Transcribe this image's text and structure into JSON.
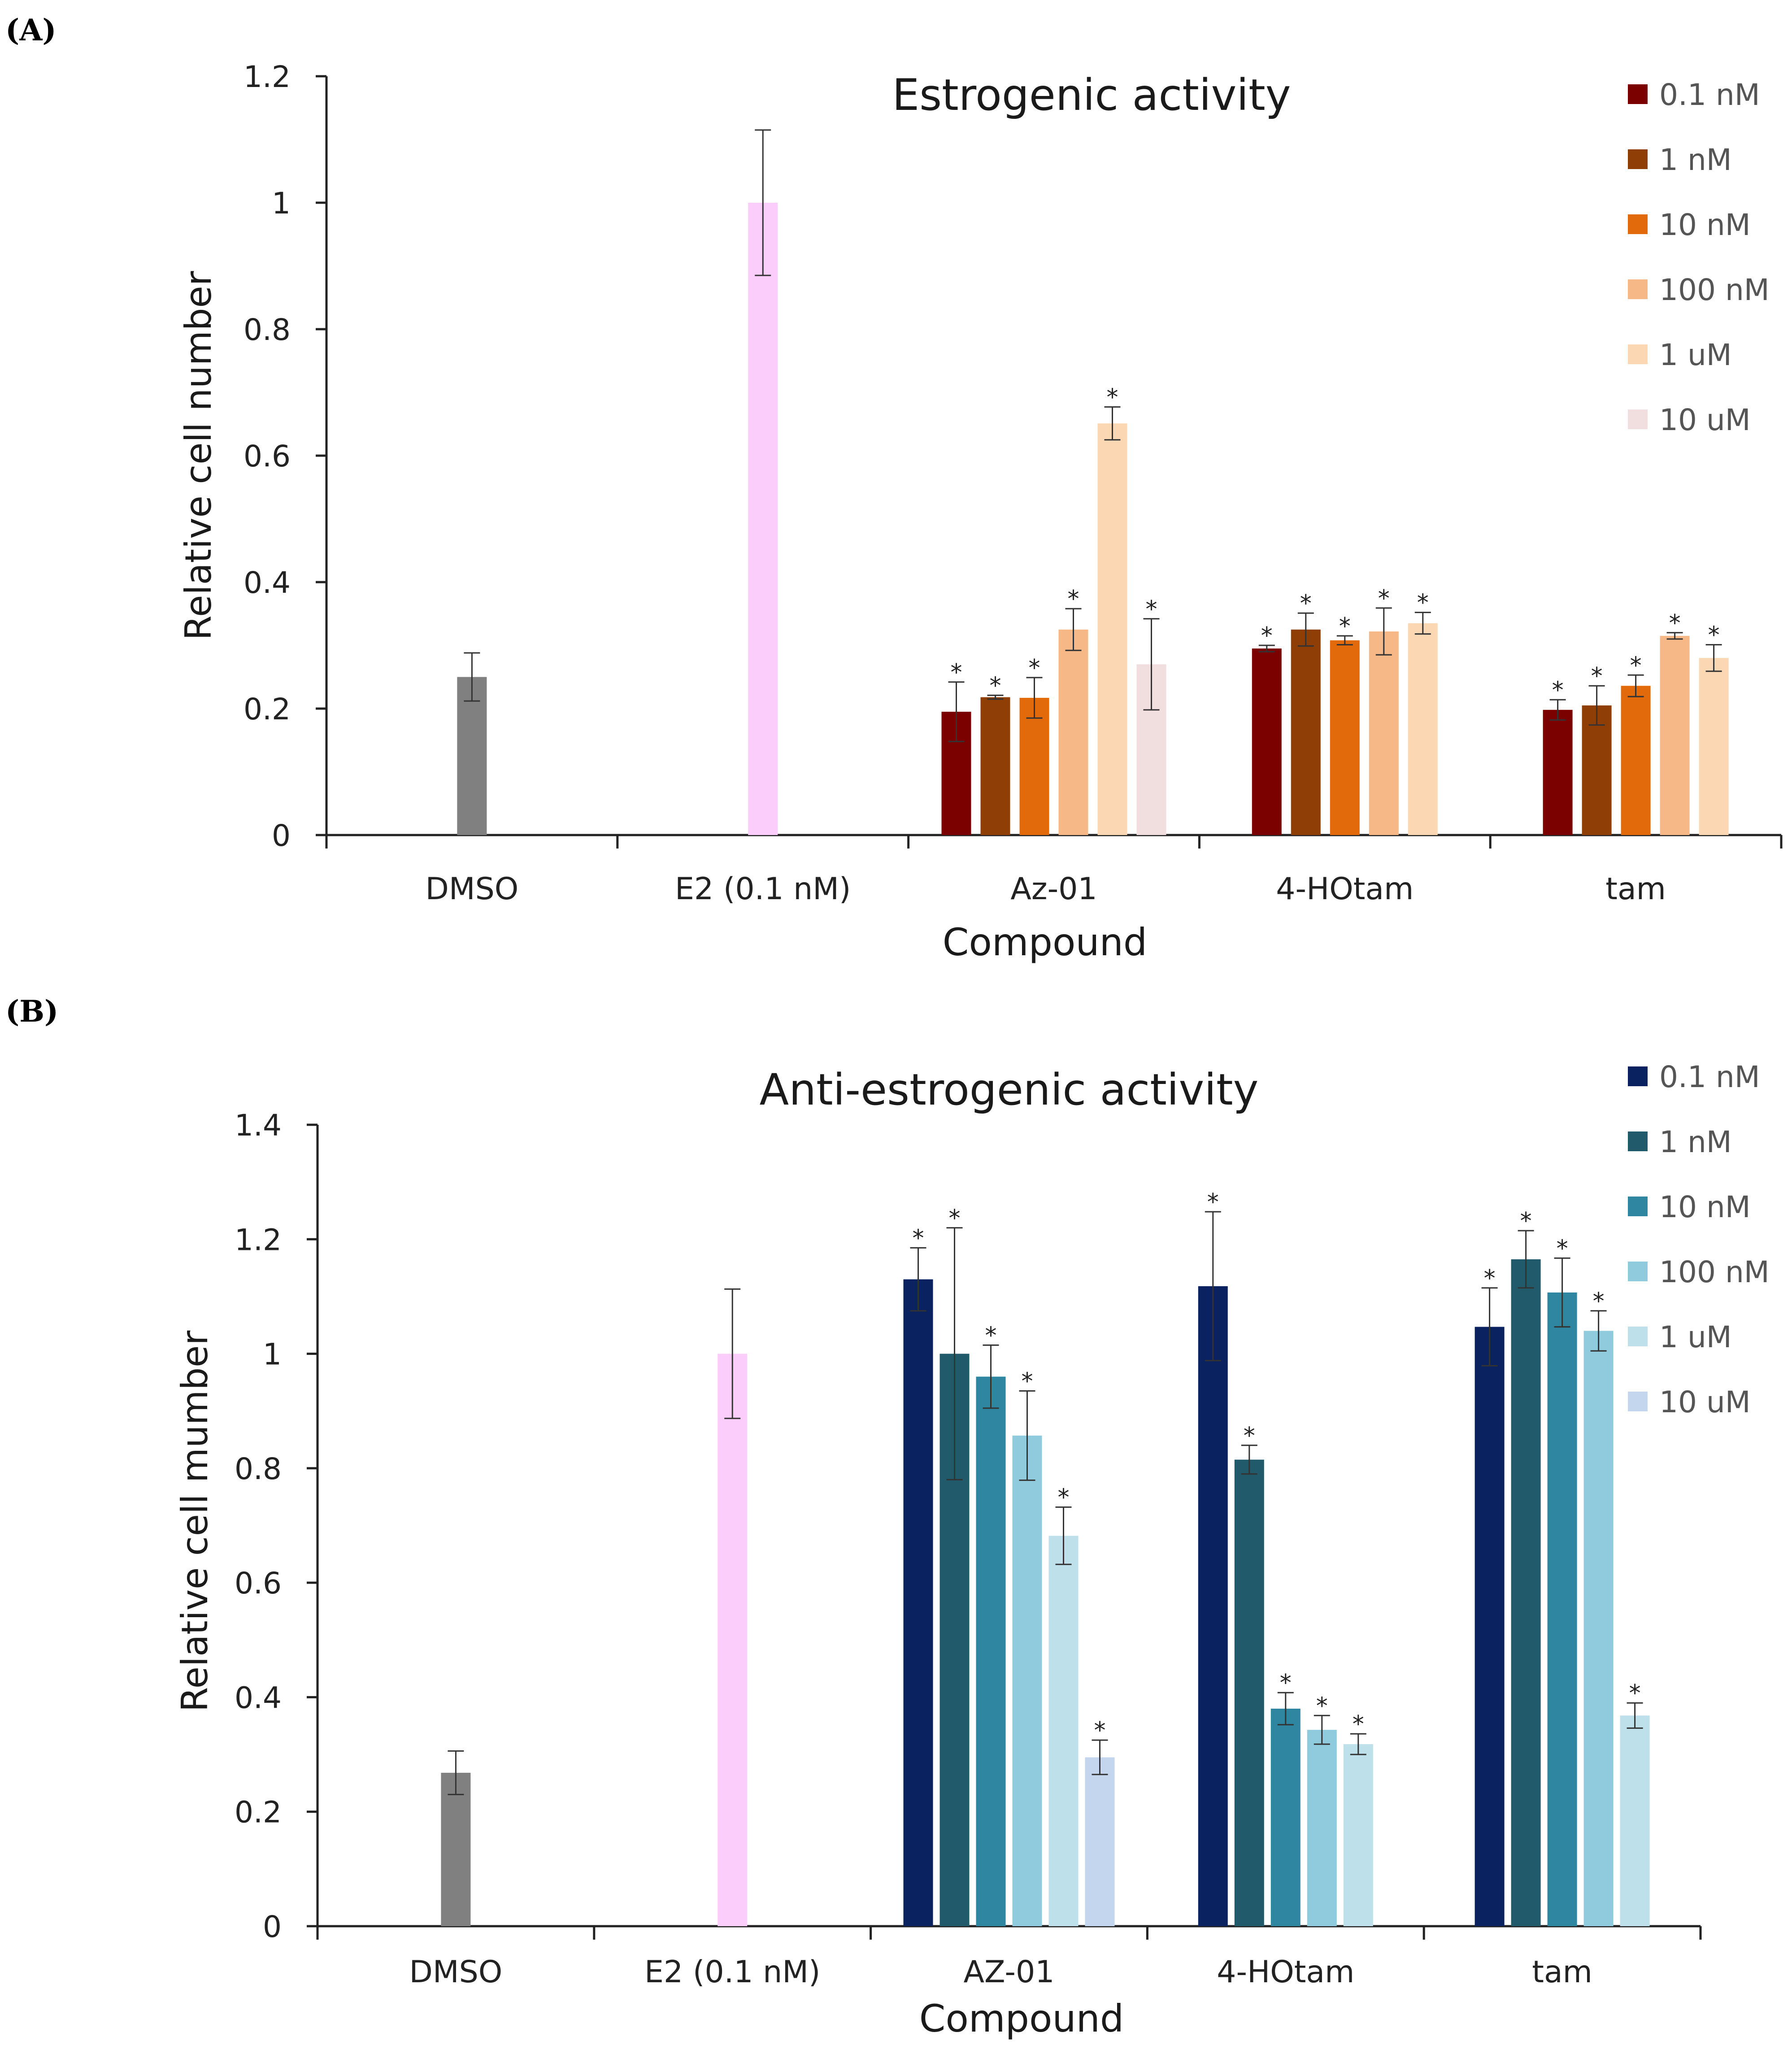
{
  "chart_data": [
    {
      "type": "bar",
      "panel_label": "(A)",
      "title": "Estrogenic activity",
      "xlabel": "Compound",
      "ylabel": "Relative cell number",
      "ylim": [
        0,
        1.2
      ],
      "ytick_step": 0.2,
      "yticks": [
        "0",
        "0.2",
        "0.4",
        "0.6",
        "0.8",
        "1",
        "1.2"
      ],
      "grid": false,
      "legend_position": "top-right",
      "legend": [
        {
          "label": "0.1 nM",
          "color": "#7b0000"
        },
        {
          "label": "1 nM",
          "color": "#8f3e06"
        },
        {
          "label": "10 nM",
          "color": "#e36a0a"
        },
        {
          "label": "100 nM",
          "color": "#f6b887"
        },
        {
          "label": "1 uM",
          "color": "#fbd7b4"
        },
        {
          "label": "10 uM",
          "color": "#f1dede"
        }
      ],
      "categories": [
        "DMSO",
        "E2 (0.1 nM)",
        "Az-01",
        "4-HOtam",
        "tam"
      ],
      "groups": [
        {
          "category": "DMSO",
          "bars": [
            {
              "value": 0.25,
              "error": 0.038,
              "color": "#808080",
              "star": false
            }
          ]
        },
        {
          "category": "E2 (0.1 nM)",
          "bars": [
            {
              "value": 1.0,
              "error": 0.115,
              "color": "#fbcdfb",
              "star": false
            }
          ]
        },
        {
          "category": "Az-01",
          "bars": [
            {
              "series": "0.1 nM",
              "value": 0.195,
              "error": 0.047,
              "star": true
            },
            {
              "series": "1 nM",
              "value": 0.218,
              "error": 0.003,
              "star": true
            },
            {
              "series": "10 nM",
              "value": 0.217,
              "error": 0.032,
              "star": true
            },
            {
              "series": "100 nM",
              "value": 0.325,
              "error": 0.033,
              "star": true
            },
            {
              "series": "1 uM",
              "value": 0.651,
              "error": 0.026,
              "star": true
            },
            {
              "series": "10 uM",
              "value": 0.27,
              "error": 0.072,
              "star": true
            }
          ]
        },
        {
          "category": "4-HOtam",
          "bars": [
            {
              "series": "0.1 nM",
              "value": 0.295,
              "error": 0.005,
              "star": true
            },
            {
              "series": "1 nM",
              "value": 0.325,
              "error": 0.026,
              "star": true
            },
            {
              "series": "10 nM",
              "value": 0.308,
              "error": 0.007,
              "star": true
            },
            {
              "series": "100 nM",
              "value": 0.322,
              "error": 0.037,
              "star": true
            },
            {
              "series": "1 uM",
              "value": 0.335,
              "error": 0.017,
              "star": true
            }
          ]
        },
        {
          "category": "tam",
          "bars": [
            {
              "series": "0.1 nM",
              "value": 0.198,
              "error": 0.016,
              "star": true
            },
            {
              "series": "1 nM",
              "value": 0.205,
              "error": 0.031,
              "star": true
            },
            {
              "series": "10 nM",
              "value": 0.236,
              "error": 0.017,
              "star": true
            },
            {
              "series": "100 nM",
              "value": 0.315,
              "error": 0.005,
              "star": true
            },
            {
              "series": "1 uM",
              "value": 0.28,
              "error": 0.021,
              "star": true
            }
          ]
        }
      ]
    },
    {
      "type": "bar",
      "panel_label": "(B)",
      "title": "Anti-estrogenic activity",
      "xlabel": "Compound",
      "ylabel": "Relative cell mumber",
      "ylim": [
        0,
        1.4
      ],
      "ytick_step": 0.2,
      "yticks": [
        "0",
        "0.2",
        "0.4",
        "0.6",
        "0.8",
        "1",
        "1.2",
        "1.4"
      ],
      "grid": false,
      "legend_position": "top-right",
      "legend": [
        {
          "label": "0.1 nM",
          "color": "#0b2260"
        },
        {
          "label": "1 nM",
          "color": "#215a6a"
        },
        {
          "label": "10 nM",
          "color": "#2f86a0"
        },
        {
          "label": "100 nM",
          "color": "#90cadd"
        },
        {
          "label": "1 uM",
          "color": "#bde0ea"
        },
        {
          "label": "10 uM",
          "color": "#c3d6ee"
        }
      ],
      "categories": [
        "DMSO",
        "E2 (0.1 nM)",
        "AZ-01",
        "4-HOtam",
        "tam"
      ],
      "groups": [
        {
          "category": "DMSO",
          "bars": [
            {
              "value": 0.268,
              "error": 0.038,
              "color": "#808080",
              "star": false
            }
          ]
        },
        {
          "category": "E2 (0.1 nM)",
          "bars": [
            {
              "value": 1.0,
              "error": 0.113,
              "color": "#fbcdfb",
              "star": false
            }
          ]
        },
        {
          "category": "AZ-01",
          "bars": [
            {
              "series": "0.1 nM",
              "value": 1.13,
              "error": 0.055,
              "star": true
            },
            {
              "series": "1 nM",
              "value": 1.0,
              "error": 0.22,
              "star": true
            },
            {
              "series": "10 nM",
              "value": 0.96,
              "error": 0.055,
              "star": true
            },
            {
              "series": "100 nM",
              "value": 0.857,
              "error": 0.078,
              "star": true
            },
            {
              "series": "1 uM",
              "value": 0.682,
              "error": 0.05,
              "star": true
            },
            {
              "series": "10 uM",
              "value": 0.295,
              "error": 0.03,
              "star": true
            }
          ]
        },
        {
          "category": "4-HOtam",
          "bars": [
            {
              "series": "0.1 nM",
              "value": 1.118,
              "error": 0.13,
              "star": true
            },
            {
              "series": "1 nM",
              "value": 0.815,
              "error": 0.025,
              "star": true
            },
            {
              "series": "10 nM",
              "value": 0.38,
              "error": 0.028,
              "star": true
            },
            {
              "series": "100 nM",
              "value": 0.343,
              "error": 0.025,
              "star": true
            },
            {
              "series": "1 uM",
              "value": 0.318,
              "error": 0.018,
              "star": true
            }
          ]
        },
        {
          "category": "tam",
          "bars": [
            {
              "series": "0.1 nM",
              "value": 1.047,
              "error": 0.068,
              "star": true
            },
            {
              "series": "1 nM",
              "value": 1.165,
              "error": 0.05,
              "star": true
            },
            {
              "series": "10 nM",
              "value": 1.107,
              "error": 0.06,
              "star": true
            },
            {
              "series": "100 nM",
              "value": 1.04,
              "error": 0.035,
              "star": true
            },
            {
              "series": "1 uM",
              "value": 0.368,
              "error": 0.022,
              "star": true
            }
          ]
        }
      ]
    }
  ]
}
